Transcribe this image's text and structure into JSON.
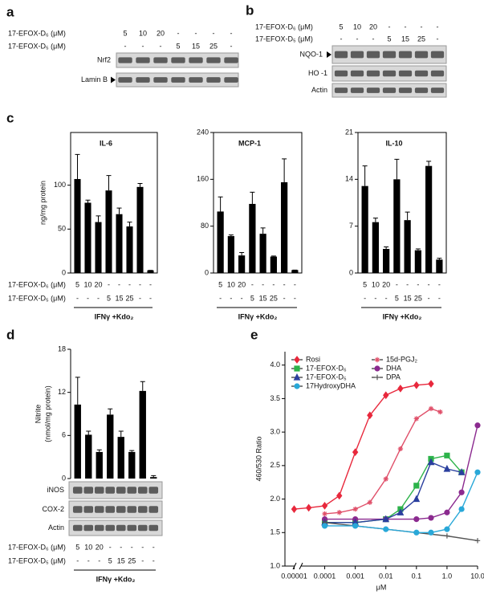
{
  "figure": {
    "a": {
      "label": "a",
      "rows": [
        {
          "name": "17-EFOX-D₆ (μM)",
          "lanes": [
            "5",
            "10",
            "20",
            "-",
            "-",
            "-",
            "-"
          ]
        },
        {
          "name": "17-EFOX-D₅ (μM)",
          "lanes": [
            "-",
            "-",
            "-",
            "5",
            "15",
            "25",
            "-"
          ]
        }
      ],
      "blots": [
        "Nrf2",
        "Lamin B"
      ]
    },
    "b": {
      "label": "b",
      "rows": [
        {
          "name": "17-EFOX-D₆ (μM)",
          "lanes": [
            "5",
            "10",
            "20",
            "-",
            "-",
            "-",
            "-"
          ]
        },
        {
          "name": "17-EFOX-D₅ (μM)",
          "lanes": [
            "-",
            "-",
            "-",
            "5",
            "15",
            "25",
            "-"
          ]
        }
      ],
      "blots": [
        "NQO-1",
        "HO  -1",
        "Actin"
      ]
    },
    "c": {
      "label": "c",
      "rows": [
        {
          "name": "17-EFOX-D₆ (μM)",
          "lanes": [
            "5",
            "10",
            "20",
            "-",
            "-",
            "-",
            "-",
            "-"
          ]
        },
        {
          "name": "17-EFOX-D₅ (μM)",
          "lanes": [
            "-",
            "-",
            "-",
            "5",
            "15",
            "25",
            "-",
            "-"
          ]
        }
      ]
    },
    "d": {
      "label": "d",
      "rows": [
        {
          "name": "17-EFOX-D₆ (μM)",
          "lanes": [
            "5",
            "10",
            "20",
            "-",
            "-",
            "-",
            "-",
            "-"
          ]
        },
        {
          "name": "17-EFOX-D₅ (μM)",
          "lanes": [
            "-",
            "-",
            "-",
            "5",
            "15",
            "25",
            "-",
            "-"
          ]
        }
      ],
      "blots": [
        "iNOS",
        "COX-2",
        "Actin"
      ]
    },
    "e": {
      "label": "e"
    }
  },
  "chart_data": [
    {
      "type": "bar",
      "title": "IL-6",
      "ylabel": [
        "ng/mg protein"
      ],
      "color": "#000000",
      "values": [
        107,
        80,
        58,
        94,
        67,
        53,
        98,
        3
      ],
      "errors": [
        28,
        3,
        7,
        17,
        7,
        5,
        4,
        0
      ],
      "ylim": [
        0,
        160
      ],
      "yticks": [
        0,
        50,
        100
      ],
      "footer": "IFNγ +Kdo₂"
    },
    {
      "type": "bar",
      "title": "MCP-1",
      "color": "#000000",
      "values": [
        105,
        63,
        30,
        118,
        67,
        28,
        155,
        5
      ],
      "errors": [
        25,
        2,
        5,
        20,
        10,
        1,
        40,
        0
      ],
      "ylim": [
        0,
        240
      ],
      "yticks": [
        0,
        80,
        160,
        240
      ],
      "footer": "IFNγ +Kdo₂"
    },
    {
      "type": "bar",
      "title": "IL-10",
      "color": "#000000",
      "values": [
        13,
        7.6,
        3.6,
        14,
        7.9,
        3.4,
        16,
        2
      ],
      "errors": [
        3,
        0.6,
        0.3,
        3,
        1.2,
        0.2,
        0.7,
        0.2
      ],
      "ylim": [
        0,
        21
      ],
      "yticks": [
        0,
        7,
        14,
        21
      ],
      "footer": "IFNγ +Kdo₂"
    },
    {
      "type": "bar",
      "ylabel": [
        "Nitrite",
        "(nmol/mg protein)"
      ],
      "color": "#000000",
      "values": [
        10.3,
        6.1,
        3.7,
        8.9,
        5.8,
        3.7,
        12.2,
        0.2
      ],
      "errors": [
        3.8,
        0.5,
        0.3,
        0.8,
        0.8,
        0.2,
        1.3,
        0.2
      ],
      "ylim": [
        0,
        18
      ],
      "yticks": [
        0,
        6,
        12,
        18
      ],
      "footer": "IFNγ +Kdo₂"
    },
    {
      "type": "scatter",
      "xlabel": "μM",
      "ylabel": [
        "460/530 Ratio"
      ],
      "log_x": true,
      "xlim": [
        5e-06,
        10
      ],
      "xticks": [
        1e-05,
        0.0001,
        0.001,
        0.01,
        0.1,
        {
          "value": 1,
          "label": "1.0"
        },
        {
          "value": 10,
          "label": "10.0"
        }
      ],
      "ylim": [
        1.0,
        4.2
      ],
      "yticks": [
        {
          "value": 1,
          "label": "1.0"
        },
        1.5,
        {
          "value": 2,
          "label": "2.0"
        },
        2.5,
        {
          "value": 3,
          "label": "3.0"
        },
        3.5,
        {
          "value": 4,
          "label": "4.0"
        }
      ],
      "series": [
        {
          "name": "Rosi",
          "color": "#e8283c",
          "marker": "diamond",
          "x": [
            1e-05,
            3e-05,
            0.0001,
            0.0003,
            0.001,
            0.003,
            0.01,
            0.03,
            0.1,
            0.3
          ],
          "values": [
            1.85,
            1.87,
            1.9,
            2.05,
            2.7,
            3.25,
            3.55,
            3.65,
            3.7,
            3.72
          ]
        },
        {
          "name": "15d-PGJ₂",
          "color": "#e0506a",
          "marker": "asterisk",
          "x": [
            0.0001,
            0.0003,
            0.001,
            0.003,
            0.01,
            0.03,
            0.1,
            0.3,
            0.6
          ],
          "values": [
            1.78,
            1.8,
            1.85,
            1.95,
            2.3,
            2.75,
            3.2,
            3.35,
            3.3
          ]
        },
        {
          "name": "17-EFOX-D₆",
          "color": "#2db34a",
          "marker": "square",
          "x": [
            0.0001,
            0.001,
            0.01,
            0.03,
            0.1,
            0.3,
            1,
            3
          ],
          "values": [
            1.65,
            1.65,
            1.7,
            1.85,
            2.2,
            2.6,
            2.65,
            2.4
          ]
        },
        {
          "name": "DHA",
          "color": "#8b2a8f",
          "marker": "circle",
          "x": [
            0.0001,
            0.001,
            0.01,
            0.1,
            0.3,
            1,
            3,
            10
          ],
          "values": [
            1.7,
            1.7,
            1.7,
            1.7,
            1.72,
            1.8,
            2.1,
            3.1
          ]
        },
        {
          "name": "17-EFOX-D₅",
          "color": "#2a3f9e",
          "marker": "triangle",
          "x": [
            0.0001,
            0.001,
            0.01,
            0.03,
            0.1,
            0.3,
            1,
            3
          ],
          "values": [
            1.65,
            1.65,
            1.7,
            1.8,
            2.0,
            2.55,
            2.45,
            2.4
          ]
        },
        {
          "name": "DPA",
          "color": "#555555",
          "marker": "plus",
          "x": [
            0.0001,
            0.001,
            0.01,
            0.1,
            1,
            10
          ],
          "values": [
            1.65,
            1.6,
            1.55,
            1.5,
            1.45,
            1.38
          ]
        },
        {
          "name": "17HydroxyDHA",
          "color": "#29a8d8",
          "marker": "circle",
          "x": [
            0.0001,
            0.001,
            0.01,
            0.1,
            0.3,
            1,
            3,
            10
          ],
          "values": [
            1.6,
            1.6,
            1.55,
            1.5,
            1.5,
            1.55,
            1.85,
            2.4
          ]
        }
      ]
    }
  ]
}
